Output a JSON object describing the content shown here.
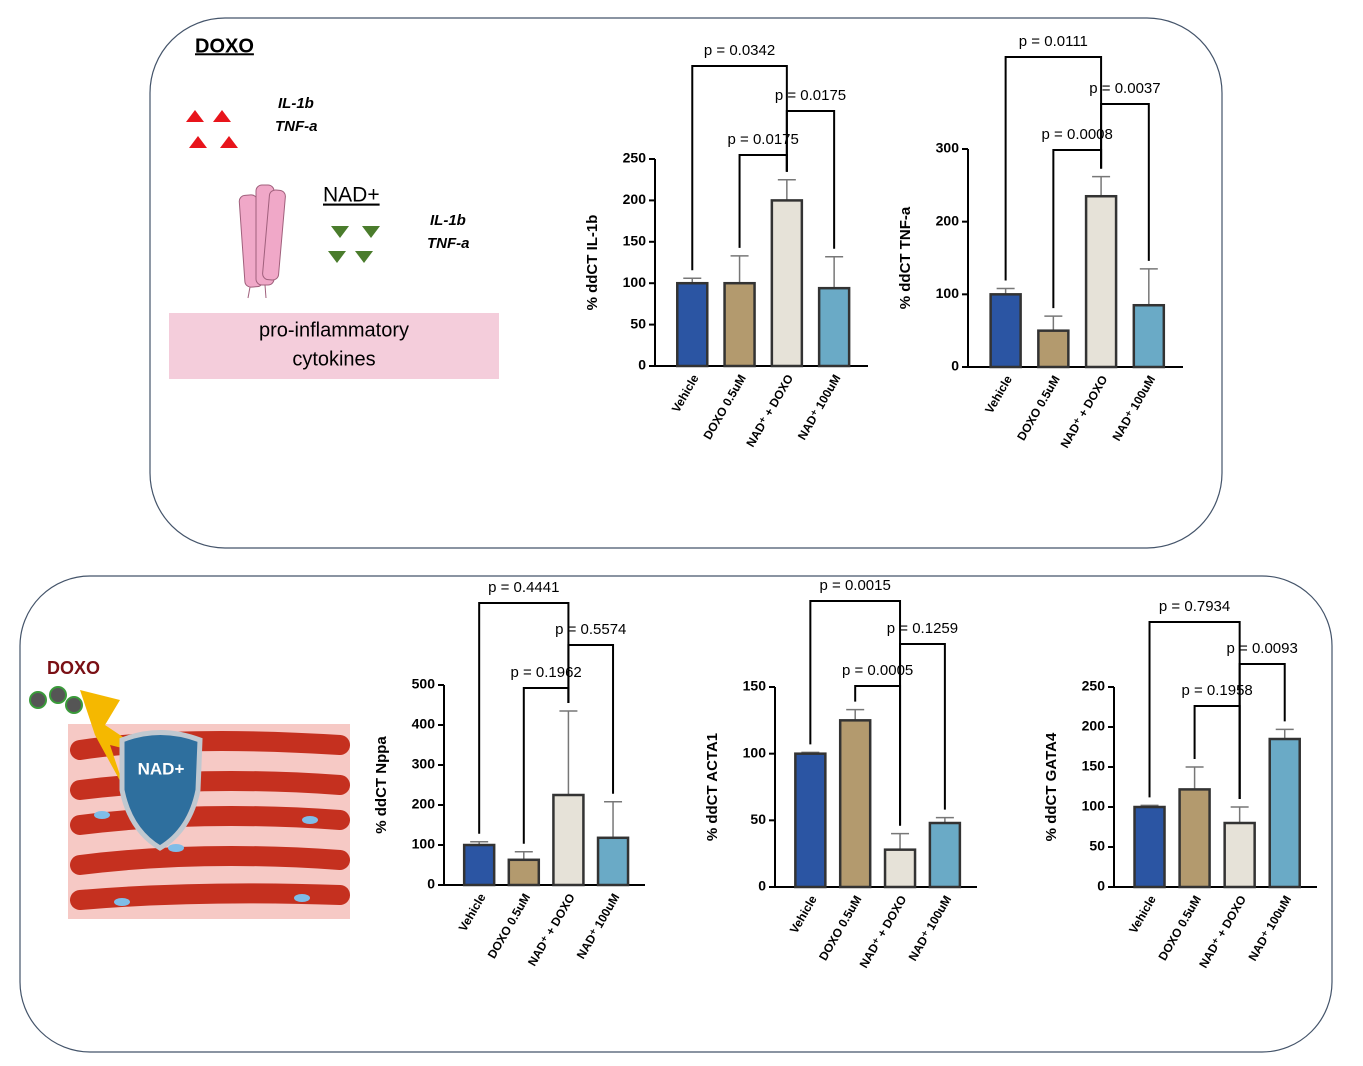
{
  "panel_top": {
    "label": "DOXO",
    "up_markers": [
      "IL-1b",
      "TNF-a"
    ],
    "treatment": "NAD+",
    "down_markers": [
      "IL-1b",
      "TNF-a"
    ],
    "box": [
      "pro-inflammatory",
      "cytokines"
    ]
  },
  "panel_bottom": {
    "label": "DOXO",
    "shield": "NAD+"
  },
  "chart_data": [
    {
      "type": "bar",
      "ylabel": "% ddCT IL-1b",
      "categories": [
        "Vehicle",
        "DOXO 0.5uM",
        "NAD⁺ + DOXO",
        "NAD⁺ 100uM"
      ],
      "values": [
        100,
        100,
        200,
        94
      ],
      "errors": [
        6,
        33,
        25,
        38
      ],
      "colors": [
        "#2b55a3",
        "#b39a6e",
        "#e6e2d8",
        "#6aaac6"
      ],
      "ylim": [
        0,
        250
      ],
      "yticks": [
        0,
        50,
        100,
        150,
        200,
        250
      ],
      "annotations": [
        "p = 0.0342",
        "p = 0.0175",
        "p = 0.0175"
      ]
    },
    {
      "type": "bar",
      "ylabel": "% ddCT TNF-a",
      "categories": [
        "Vehicle",
        "DOXO 0.5uM",
        "NAD⁺ + DOXO",
        "NAD⁺ 100uM"
      ],
      "values": [
        100,
        50,
        235,
        85
      ],
      "errors": [
        8,
        20,
        27,
        50
      ],
      "colors": [
        "#2b55a3",
        "#b39a6e",
        "#e6e2d8",
        "#6aaac6"
      ],
      "ylim": [
        0,
        300
      ],
      "yticks": [
        0,
        100,
        200,
        300
      ],
      "annotations": [
        "p = 0.0111",
        "p = 0.0037",
        "p = 0.0008"
      ]
    },
    {
      "type": "bar",
      "ylabel": "% ddCT Nppa",
      "categories": [
        "Vehicle",
        "DOXO 0.5uM",
        "NAD⁺ + DOXO",
        "NAD⁺ 100uM"
      ],
      "values": [
        100,
        63,
        225,
        118
      ],
      "errors": [
        8,
        20,
        210,
        90
      ],
      "colors": [
        "#2b55a3",
        "#b39a6e",
        "#e6e2d8",
        "#6aaac6"
      ],
      "ylim": [
        0,
        500
      ],
      "yticks": [
        0,
        100,
        200,
        300,
        400,
        500
      ],
      "annotations": [
        "p = 0.4441",
        "p = 0.5574",
        "p = 0.1962"
      ]
    },
    {
      "type": "bar",
      "ylabel": "% ddCT ACTA1",
      "categories": [
        "Vehicle",
        "DOXO 0.5uM",
        "NAD⁺ + DOXO",
        "NAD⁺ 100uM"
      ],
      "values": [
        100,
        125,
        28,
        48
      ],
      "errors": [
        1,
        8,
        12,
        4
      ],
      "colors": [
        "#2b55a3",
        "#b39a6e",
        "#e6e2d8",
        "#6aaac6"
      ],
      "ylim": [
        0,
        150
      ],
      "yticks": [
        0,
        50,
        100,
        150
      ],
      "annotations": [
        "p = 0.0015",
        "p = 0.1259",
        "p = 0.0005"
      ]
    },
    {
      "type": "bar",
      "ylabel": "% ddCT GATA4",
      "categories": [
        "Vehicle",
        "DOXO 0.5uM",
        "NAD⁺ + DOXO",
        "NAD⁺ 100uM"
      ],
      "values": [
        100,
        122,
        80,
        185
      ],
      "errors": [
        2,
        28,
        20,
        12
      ],
      "colors": [
        "#2b55a3",
        "#b39a6e",
        "#e6e2d8",
        "#6aaac6"
      ],
      "ylim": [
        0,
        250
      ],
      "yticks": [
        0,
        50,
        100,
        150,
        200,
        250
      ],
      "annotations": [
        "p = 0.7934",
        "p = 0.0093",
        "p = 0.1958"
      ]
    }
  ]
}
